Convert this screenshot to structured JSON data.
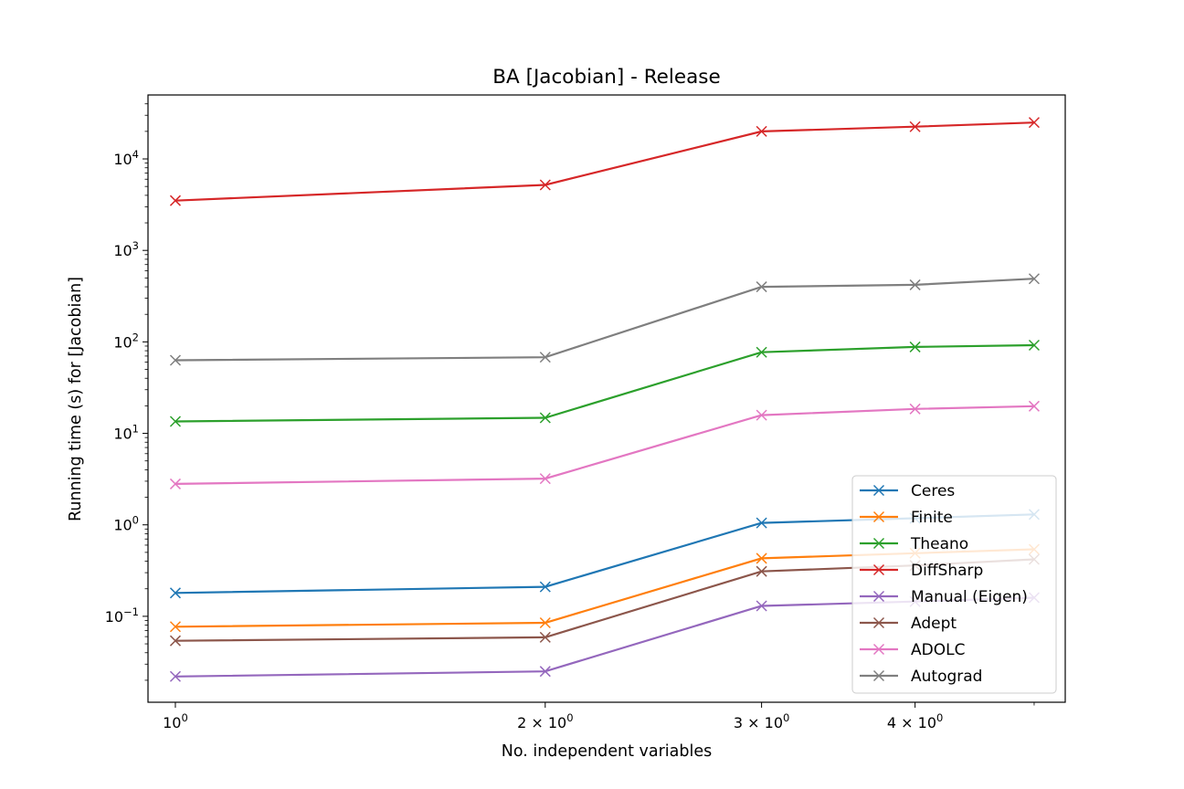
{
  "chart_data": {
    "type": "line",
    "title": "BA [Jacobian] - Release",
    "xlabel": "No. independent variables",
    "ylabel": "Running time (s) for [Jacobian]",
    "x_scale": "log",
    "y_scale": "log",
    "xlim": [
      0.95,
      5.3
    ],
    "ylim": [
      0.0115,
      50000
    ],
    "grid": false,
    "legend_position": "lower-right",
    "marker": "x",
    "x": [
      1,
      2,
      3,
      4,
      5
    ],
    "x_ticks": [
      {
        "value": 1,
        "base": "10",
        "exp": "0"
      },
      {
        "value": 2,
        "base": "2 × 10",
        "exp": "0"
      },
      {
        "value": 3,
        "base": "3 × 10",
        "exp": "0"
      },
      {
        "value": 4,
        "base": "4 × 10",
        "exp": "0"
      }
    ],
    "y_ticks": [
      {
        "value": 0.1,
        "base": "10",
        "exp": "−1"
      },
      {
        "value": 1,
        "base": "10",
        "exp": "0"
      },
      {
        "value": 10,
        "base": "10",
        "exp": "1"
      },
      {
        "value": 100,
        "base": "10",
        "exp": "2"
      },
      {
        "value": 1000,
        "base": "10",
        "exp": "3"
      },
      {
        "value": 10000,
        "base": "10",
        "exp": "4"
      }
    ],
    "series": [
      {
        "name": "Ceres",
        "color": "#1f77b4",
        "values": [
          0.18,
          0.21,
          1.05,
          1.18,
          1.3
        ]
      },
      {
        "name": "Finite",
        "color": "#ff7f0e",
        "values": [
          0.077,
          0.085,
          0.43,
          0.49,
          0.54
        ]
      },
      {
        "name": "Theano",
        "color": "#2ca02c",
        "values": [
          13.5,
          14.8,
          77,
          88,
          92
        ]
      },
      {
        "name": "DiffSharp",
        "color": "#d62728",
        "values": [
          3500,
          5200,
          20000,
          22500,
          25000
        ]
      },
      {
        "name": "Manual (Eigen)",
        "color": "#9467bd",
        "values": [
          0.022,
          0.025,
          0.13,
          0.145,
          0.16
        ]
      },
      {
        "name": "Adept",
        "color": "#8c564b",
        "values": [
          0.054,
          0.059,
          0.31,
          0.36,
          0.42
        ]
      },
      {
        "name": "ADOLC",
        "color": "#e377c2",
        "values": [
          2.8,
          3.2,
          15.8,
          18.5,
          19.8
        ]
      },
      {
        "name": "Autograd",
        "color": "#7f7f7f",
        "values": [
          63,
          68,
          400,
          420,
          490
        ]
      }
    ]
  }
}
